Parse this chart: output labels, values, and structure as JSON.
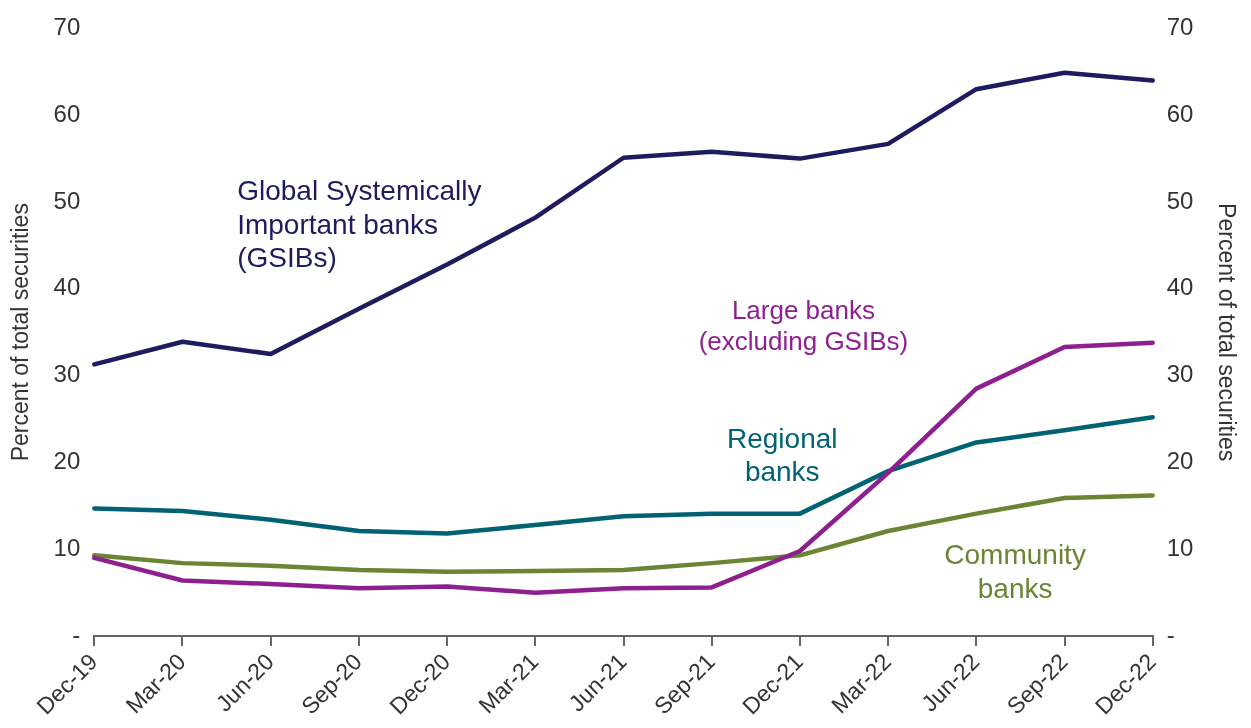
{
  "chart_data": {
    "type": "line",
    "categories": [
      "Dec-19",
      "Mar-20",
      "Jun-20",
      "Sep-20",
      "Dec-20",
      "Mar-21",
      "Jun-21",
      "Sep-21",
      "Dec-21",
      "Mar-22",
      "Jun-22",
      "Sep-22",
      "Dec-22"
    ],
    "series": [
      {
        "name": "Global Systemically Important banks (GSIBs)",
        "color": "#1e1b5e",
        "values": [
          31.3,
          33.9,
          32.5,
          37.7,
          42.8,
          48.2,
          55.1,
          55.8,
          55.0,
          56.7,
          63.0,
          64.9,
          64.0
        ]
      },
      {
        "name": "Large banks (excluding GSIBs)",
        "color": "#8e1f8f",
        "values": [
          9.0,
          6.4,
          6.0,
          5.5,
          5.7,
          5.0,
          5.5,
          5.6,
          9.8,
          18.8,
          28.5,
          33.3,
          33.8
        ]
      },
      {
        "name": "Regional banks",
        "color": "#006272",
        "values": [
          14.7,
          14.4,
          13.4,
          12.1,
          11.8,
          12.8,
          13.8,
          14.1,
          14.1,
          19.0,
          22.3,
          23.7,
          25.2
        ]
      },
      {
        "name": "Community banks",
        "color": "#6b8534",
        "values": [
          9.3,
          8.4,
          8.1,
          7.6,
          7.4,
          7.5,
          7.6,
          8.4,
          9.3,
          12.1,
          14.1,
          15.9,
          16.2
        ]
      }
    ],
    "ylabel": "Percent of total securities",
    "y2label": "Percent of total securities",
    "ylim": [
      0,
      70
    ],
    "yticks": [
      {
        "value": 0,
        "label": "-"
      },
      10,
      20,
      30,
      40,
      50,
      60,
      70
    ],
    "y2lim": [
      0,
      70
    ],
    "y2ticks": [
      {
        "value": 0,
        "label": "-"
      },
      10,
      20,
      30,
      40,
      50,
      60,
      70
    ],
    "grid": false,
    "legend": false,
    "line_style": "solid"
  }
}
